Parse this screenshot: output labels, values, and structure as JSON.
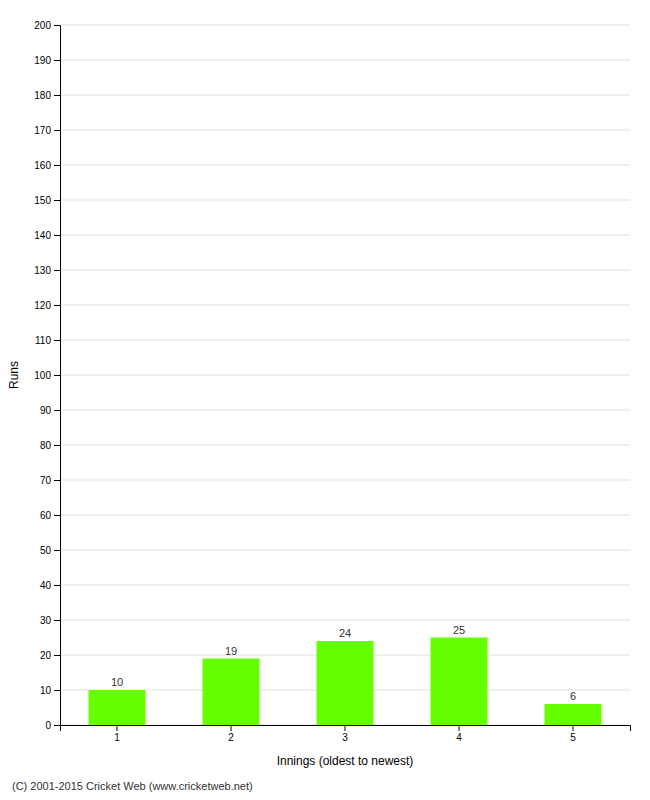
{
  "chart_data": {
    "type": "bar",
    "categories": [
      "1",
      "2",
      "3",
      "4",
      "5"
    ],
    "values": [
      10,
      19,
      24,
      25,
      6
    ],
    "color": "#66ff00",
    "xlabel": "Innings (oldest to newest)",
    "ylabel": "Runs",
    "ylim": [
      0,
      200
    ],
    "yticks": [
      0,
      10,
      20,
      30,
      40,
      50,
      60,
      70,
      80,
      90,
      100,
      110,
      120,
      130,
      140,
      150,
      160,
      170,
      180,
      190,
      200
    ],
    "grid": true,
    "data_labels": true,
    "annotations": [
      "(C) 2001-2015 Cricket Web (www.cricketweb.net)"
    ]
  }
}
